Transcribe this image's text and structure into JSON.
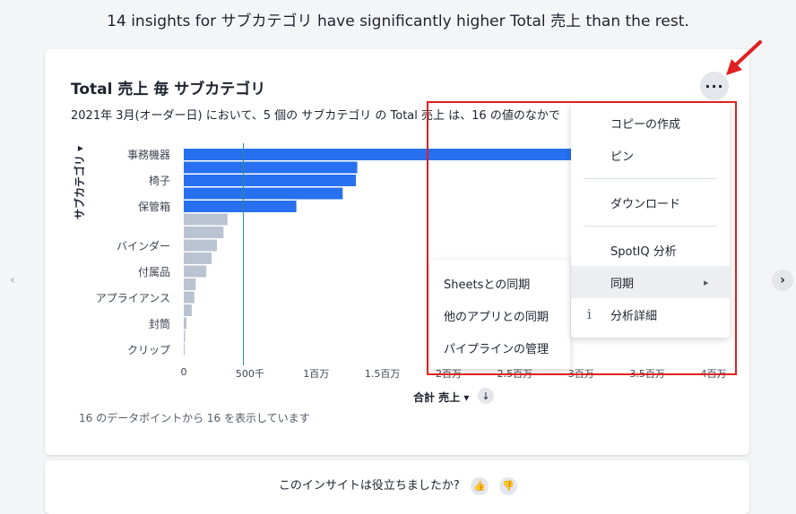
{
  "headline": "14 insights for サブカテゴリ have significantly higher Total 売上 than the rest.",
  "nav": {
    "prev_icon": "‹",
    "next_icon": "›"
  },
  "chart": {
    "title": "Total 売上 毎 サブカテゴリ",
    "subtitle": "2021年 3月(オーダー日) において、5 個の サブカテゴリ の Total 売上 は、16 の値のなかで",
    "more_label": "···",
    "ylabel": "サブカテゴリ ▾",
    "xaxis_label": "合計 売上 ▾",
    "sort_icon": "↓",
    "footnote": "16 のデータポイントから 16 を表示しています"
  },
  "chart_data": {
    "type": "bar",
    "orientation": "horizontal",
    "categories": [
      "事務機器",
      "",
      "椅子",
      "",
      "保管箱",
      "",
      "",
      "バインダー",
      "",
      "付属品",
      "",
      "アプライアンス",
      "",
      "封筒",
      "",
      "クリップ"
    ],
    "values": [
      3650000,
      1310000,
      1300000,
      1200000,
      850000,
      330000,
      300000,
      250000,
      210000,
      170000,
      90000,
      80000,
      60000,
      20000,
      10000,
      5000
    ],
    "highlighted_count": 5,
    "xticks": [
      "0",
      "500千",
      "1百万",
      "1.5百万",
      "2百万",
      "2.5百万",
      "3百万",
      "3.5百万",
      "4百万"
    ],
    "xlim": [
      0,
      4000000
    ],
    "reference_line": 450000,
    "colors": {
      "highlight": "#2770ef",
      "other": "#b9c3d1",
      "reference": "#2e8a8a"
    }
  },
  "menu": {
    "items": [
      {
        "label": "コピーの作成"
      },
      {
        "label": "ピン"
      },
      {
        "label": "ダウンロード"
      },
      {
        "label": "SpotIQ 分析"
      },
      {
        "label": "同期",
        "arrow": "▸"
      },
      {
        "label": "分析詳細",
        "icon": "i"
      }
    ]
  },
  "submenu": {
    "items": [
      {
        "label": "Sheetsとの同期"
      },
      {
        "label": "他のアプリとの同期"
      },
      {
        "label": "パイプラインの管理"
      }
    ]
  },
  "feedback": {
    "question": "このインサイトは役立ちましたか?",
    "up_icon": "👍",
    "down_icon": "👎"
  }
}
